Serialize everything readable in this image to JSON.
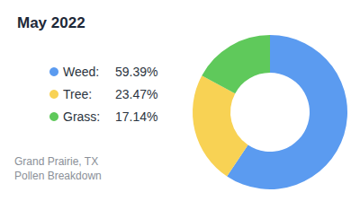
{
  "chart_data": {
    "type": "pie",
    "title": "May 2022",
    "categories": [
      "Weed:",
      "Tree:",
      "Grass:"
    ],
    "values": [
      59.39,
      23.47,
      17.14
    ],
    "value_labels": [
      "59.39%",
      "23.47%",
      "17.14%"
    ],
    "colors": [
      "#5b9bf0",
      "#f8d254",
      "#5fc95b"
    ],
    "legend": "left",
    "annotations": [
      "Grand Prairie, TX",
      "Pollen Breakdown"
    ]
  }
}
